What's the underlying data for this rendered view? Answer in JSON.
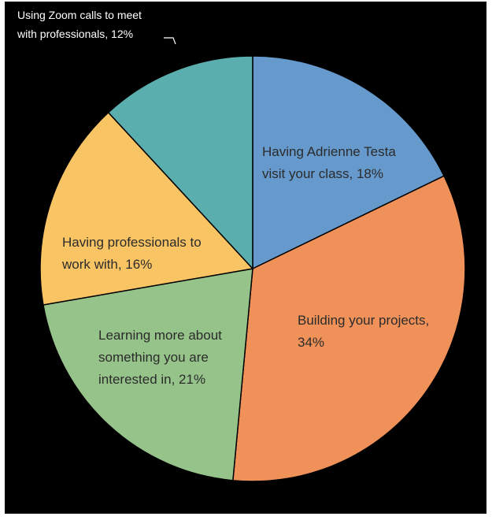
{
  "chart_data": {
    "type": "pie",
    "title": "",
    "slices": [
      {
        "label_lines": [
          "Having Adrienne Testa",
          "visit your class, 18%"
        ],
        "category": "Having Adrienne Testa visit your class",
        "value": 18,
        "color": "#6699CC"
      },
      {
        "label_lines": [
          "Building your projects,",
          "34%"
        ],
        "category": "Building your projects",
        "value": 34,
        "color": "#F0915A"
      },
      {
        "label_lines": [
          "Learning more about",
          "something you are",
          "interested in, 21%"
        ],
        "category": "Learning more about something you are interested in",
        "value": 21,
        "color": "#96C38A"
      },
      {
        "label_lines": [
          "Having professionals to",
          "work with, 16%"
        ],
        "category": "Having professionals to work with",
        "value": 16,
        "color": "#F9C464"
      },
      {
        "label_lines": [
          "Using Zoom calls to meet",
          "with professionals, 12%"
        ],
        "category": "Using Zoom calls to meet with professionals",
        "value": 12,
        "color": "#5BAEAE"
      }
    ],
    "start_angle_deg": 0,
    "direction": "clockwise",
    "background": "#000000",
    "legend": "none"
  }
}
